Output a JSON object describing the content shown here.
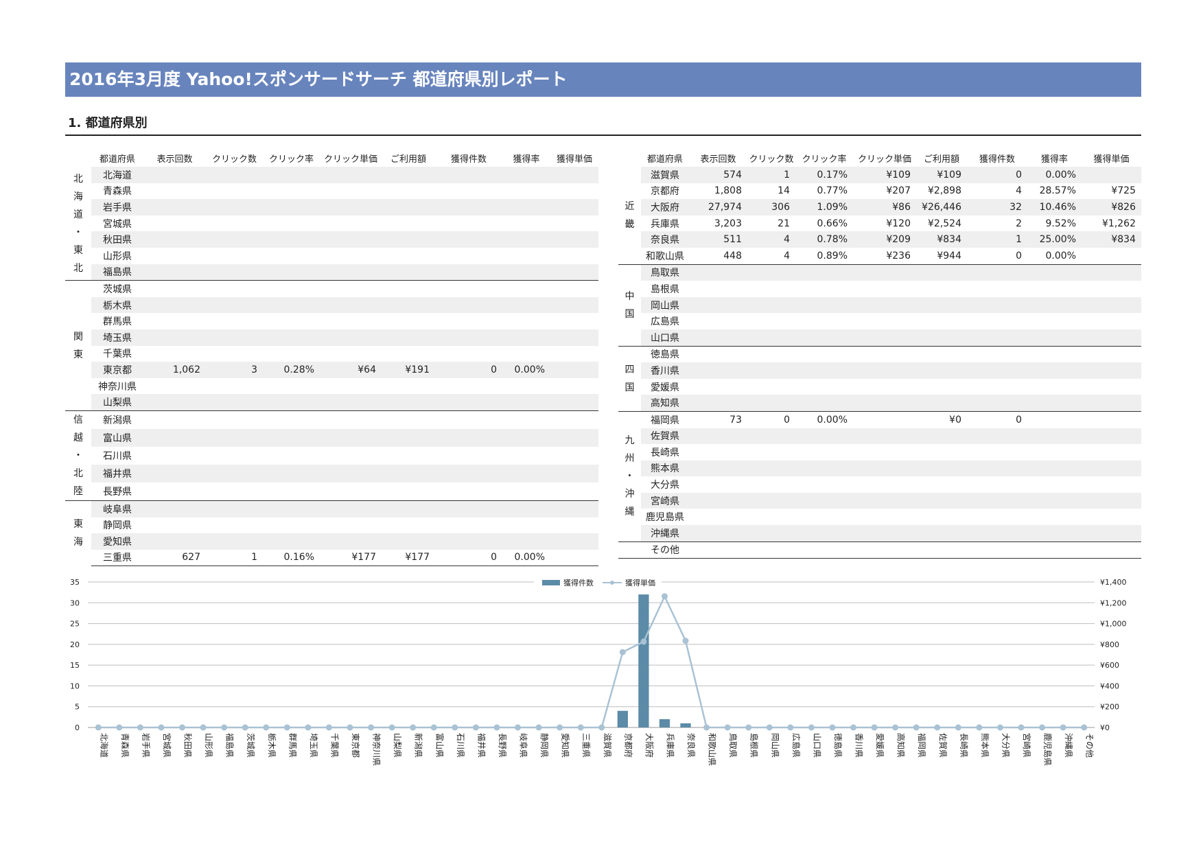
{
  "title": "2016年3月度 Yahoo!スポンサードサーチ 都道府県別レポート",
  "section_title": "1. 都道府県別",
  "colors": {
    "banner": "#6784bd",
    "bar": "#5b8ba7",
    "line": "#a9c2d4"
  },
  "table_left": {
    "headers": [
      "都道府県",
      "表示回数",
      "クリック数",
      "クリック率",
      "クリック単価",
      "ご利用額",
      "獲得件数",
      "獲得率",
      "獲得単価"
    ],
    "groups": [
      {
        "region": "北海道・東北",
        "rows": [
          {
            "pref": "北海道"
          },
          {
            "pref": "青森県"
          },
          {
            "pref": "岩手県"
          },
          {
            "pref": "宮城県"
          },
          {
            "pref": "秋田県"
          },
          {
            "pref": "山形県"
          },
          {
            "pref": "福島県"
          }
        ]
      },
      {
        "region": "関東",
        "rows": [
          {
            "pref": "茨城県"
          },
          {
            "pref": "栃木県"
          },
          {
            "pref": "群馬県"
          },
          {
            "pref": "埼玉県"
          },
          {
            "pref": "千葉県"
          },
          {
            "pref": "東京都",
            "impressions": "1,062",
            "clicks": "3",
            "ctr": "0.28%",
            "cpc": "¥64",
            "cost": "¥191",
            "conversions": "0",
            "cvr": "0.00%"
          },
          {
            "pref": "神奈川県"
          },
          {
            "pref": "山梨県"
          }
        ]
      },
      {
        "region": "信越・北陸",
        "rows": [
          {
            "pref": "新潟県"
          },
          {
            "pref": "富山県"
          },
          {
            "pref": "石川県"
          },
          {
            "pref": "福井県"
          },
          {
            "pref": "長野県"
          }
        ]
      },
      {
        "region": "東海",
        "rows": [
          {
            "pref": "岐阜県"
          },
          {
            "pref": "静岡県"
          },
          {
            "pref": "愛知県"
          },
          {
            "pref": "三重県",
            "impressions": "627",
            "clicks": "1",
            "ctr": "0.16%",
            "cpc": "¥177",
            "cost": "¥177",
            "conversions": "0",
            "cvr": "0.00%"
          }
        ]
      }
    ]
  },
  "table_right": {
    "headers": [
      "都道府県",
      "表示回数",
      "クリック数",
      "クリック率",
      "クリック単価",
      "ご利用額",
      "獲得件数",
      "獲得率",
      "獲得単価"
    ],
    "groups": [
      {
        "region": "近畿",
        "rows": [
          {
            "pref": "滋賀県",
            "impressions": "574",
            "clicks": "1",
            "ctr": "0.17%",
            "cpc": "¥109",
            "cost": "¥109",
            "conversions": "0",
            "cvr": "0.00%"
          },
          {
            "pref": "京都府",
            "impressions": "1,808",
            "clicks": "14",
            "ctr": "0.77%",
            "cpc": "¥207",
            "cost": "¥2,898",
            "conversions": "4",
            "cvr": "28.57%",
            "cpa": "¥725"
          },
          {
            "pref": "大阪府",
            "impressions": "27,974",
            "clicks": "306",
            "ctr": "1.09%",
            "cpc": "¥86",
            "cost": "¥26,446",
            "conversions": "32",
            "cvr": "10.46%",
            "cpa": "¥826"
          },
          {
            "pref": "兵庫県",
            "impressions": "3,203",
            "clicks": "21",
            "ctr": "0.66%",
            "cpc": "¥120",
            "cost": "¥2,524",
            "conversions": "2",
            "cvr": "9.52%",
            "cpa": "¥1,262"
          },
          {
            "pref": "奈良県",
            "impressions": "511",
            "clicks": "4",
            "ctr": "0.78%",
            "cpc": "¥209",
            "cost": "¥834",
            "conversions": "1",
            "cvr": "25.00%",
            "cpa": "¥834"
          },
          {
            "pref": "和歌山県",
            "impressions": "448",
            "clicks": "4",
            "ctr": "0.89%",
            "cpc": "¥236",
            "cost": "¥944",
            "conversions": "0",
            "cvr": "0.00%"
          }
        ]
      },
      {
        "region": "中国",
        "rows": [
          {
            "pref": "鳥取県"
          },
          {
            "pref": "島根県"
          },
          {
            "pref": "岡山県"
          },
          {
            "pref": "広島県"
          },
          {
            "pref": "山口県"
          }
        ]
      },
      {
        "region": "四国",
        "rows": [
          {
            "pref": "徳島県"
          },
          {
            "pref": "香川県"
          },
          {
            "pref": "愛媛県"
          },
          {
            "pref": "高知県"
          }
        ]
      },
      {
        "region": "九州・沖縄",
        "rows": [
          {
            "pref": "福岡県",
            "impressions": "73",
            "clicks": "0",
            "ctr": "0.00%",
            "cost": "¥0",
            "conversions": "0"
          },
          {
            "pref": "佐賀県"
          },
          {
            "pref": "長崎県"
          },
          {
            "pref": "熊本県"
          },
          {
            "pref": "大分県"
          },
          {
            "pref": "宮崎県"
          },
          {
            "pref": "鹿児島県"
          },
          {
            "pref": "沖縄県"
          }
        ]
      },
      {
        "region": "",
        "rows": [
          {
            "pref": "その他"
          }
        ]
      }
    ]
  },
  "chart_data": {
    "type": "bar",
    "categories": [
      "北海道",
      "青森県",
      "岩手県",
      "宮城県",
      "秋田県",
      "山形県",
      "福島県",
      "茨城県",
      "栃木県",
      "群馬県",
      "埼玉県",
      "千葉県",
      "東京都",
      "神奈川県",
      "山梨県",
      "新潟県",
      "富山県",
      "石川県",
      "福井県",
      "長野県",
      "岐阜県",
      "静岡県",
      "愛知県",
      "三重県",
      "滋賀県",
      "京都府",
      "大阪府",
      "兵庫県",
      "奈良県",
      "和歌山県",
      "鳥取県",
      "島根県",
      "岡山県",
      "広島県",
      "山口県",
      "徳島県",
      "香川県",
      "愛媛県",
      "高知県",
      "福岡県",
      "佐賀県",
      "長崎県",
      "熊本県",
      "大分県",
      "宮崎県",
      "鹿児島県",
      "沖縄県",
      "その他"
    ],
    "series": [
      {
        "name": "獲得件数",
        "type": "bar",
        "axis": "left",
        "values": [
          0,
          0,
          0,
          0,
          0,
          0,
          0,
          0,
          0,
          0,
          0,
          0,
          0,
          0,
          0,
          0,
          0,
          0,
          0,
          0,
          0,
          0,
          0,
          0,
          0,
          4,
          32,
          2,
          1,
          0,
          0,
          0,
          0,
          0,
          0,
          0,
          0,
          0,
          0,
          0,
          0,
          0,
          0,
          0,
          0,
          0,
          0,
          0
        ]
      },
      {
        "name": "獲得単価",
        "type": "line",
        "axis": "right",
        "values": [
          0,
          0,
          0,
          0,
          0,
          0,
          0,
          0,
          0,
          0,
          0,
          0,
          0,
          0,
          0,
          0,
          0,
          0,
          0,
          0,
          0,
          0,
          0,
          0,
          0,
          725,
          826,
          1262,
          834,
          0,
          0,
          0,
          0,
          0,
          0,
          0,
          0,
          0,
          0,
          0,
          0,
          0,
          0,
          0,
          0,
          0,
          0,
          0
        ]
      }
    ],
    "ylim": [
      0,
      35
    ],
    "yticks": [
      "0",
      "5",
      "10",
      "15",
      "20",
      "25",
      "30",
      "35"
    ],
    "y2lim": [
      0,
      1400
    ],
    "y2ticks": [
      "¥0",
      "¥200",
      "¥400",
      "¥600",
      "¥800",
      "¥1,000",
      "¥1,200",
      "¥1,400"
    ],
    "grid": true,
    "legend": "top-center"
  }
}
